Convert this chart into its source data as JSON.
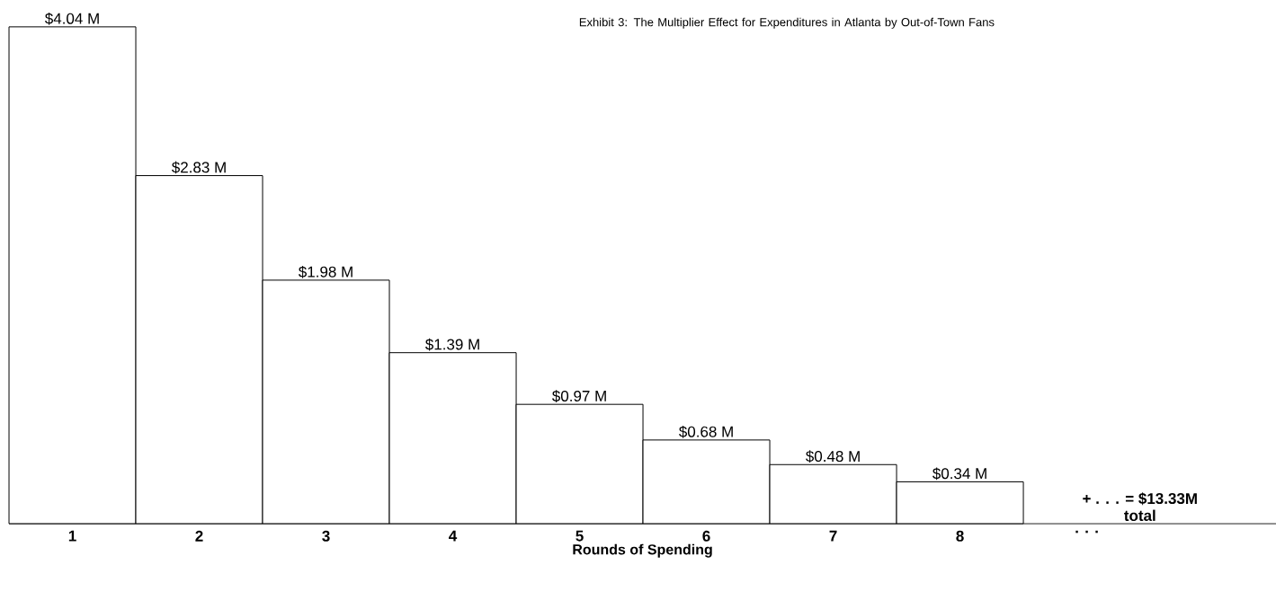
{
  "chart_data": {
    "type": "bar",
    "title": "Exhibit 3: The Multiplier Effect for Expenditures in Atlanta by Out-of-Town Fans",
    "xlabel": "Rounds of Spending",
    "categories": [
      "1",
      "2",
      "3",
      "4",
      "5",
      "6",
      "7",
      "8",
      ". . ."
    ],
    "values": [
      4.04,
      2.83,
      1.98,
      1.39,
      0.97,
      0.68,
      0.48,
      0.34,
      null
    ],
    "value_labels": [
      "$4.04 M",
      "$2.83 M",
      "$1.98 M",
      "$1.39 M",
      "$0.97 M",
      "$0.68 M",
      "$0.48 M",
      "$0.34 M",
      null
    ],
    "color": "#ffffff",
    "annotations": [
      "+ . . . = $13.33M",
      "total"
    ]
  }
}
